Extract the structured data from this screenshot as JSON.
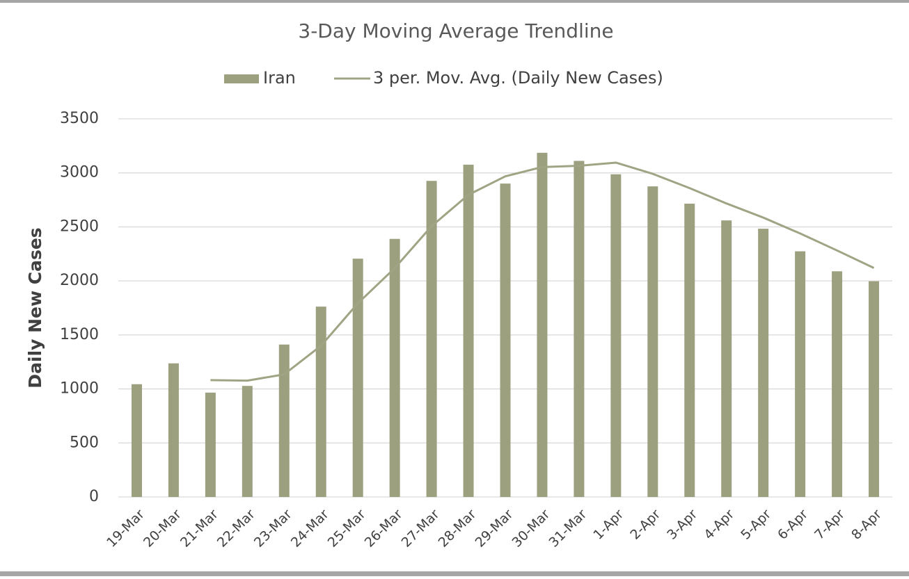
{
  "chart_data": {
    "type": "bar",
    "title": "3-Day Moving Average Trendline",
    "y_label": "Daily New Cases",
    "categories": [
      "19-Mar",
      "20-Mar",
      "21-Mar",
      "22-Mar",
      "23-Mar",
      "24-Mar",
      "25-Mar",
      "26-Mar",
      "27-Mar",
      "28-Mar",
      "29-Mar",
      "30-Mar",
      "31-Mar",
      "1-Apr",
      "2-Apr",
      "3-Apr",
      "4-Apr",
      "5-Apr",
      "6-Apr",
      "7-Apr",
      "8-Apr"
    ],
    "series": [
      {
        "name": "Iran",
        "type": "bar",
        "color": "#9da07f",
        "values": [
          1044,
          1237,
          966,
          1028,
          1411,
          1762,
          2206,
          2389,
          2926,
          3076,
          2901,
          3186,
          3111,
          2987,
          2875,
          2715,
          2560,
          2483,
          2274,
          2089,
          1997
        ]
      },
      {
        "name": "3 per. Mov. Avg. (Daily New Cases)",
        "type": "line",
        "color": "#a0a484",
        "values": [
          null,
          null,
          1082,
          1077,
          1135,
          1400,
          1793,
          2119,
          2507,
          2797,
          2968,
          3054,
          3066,
          3095,
          2991,
          2859,
          2717,
          2586,
          2439,
          2282,
          2120
        ]
      }
    ],
    "ylim": [
      0,
      3500
    ],
    "yticks": [
      0,
      500,
      1000,
      1500,
      2000,
      2500,
      3000,
      3500
    ],
    "grid": true,
    "legend": "top"
  }
}
